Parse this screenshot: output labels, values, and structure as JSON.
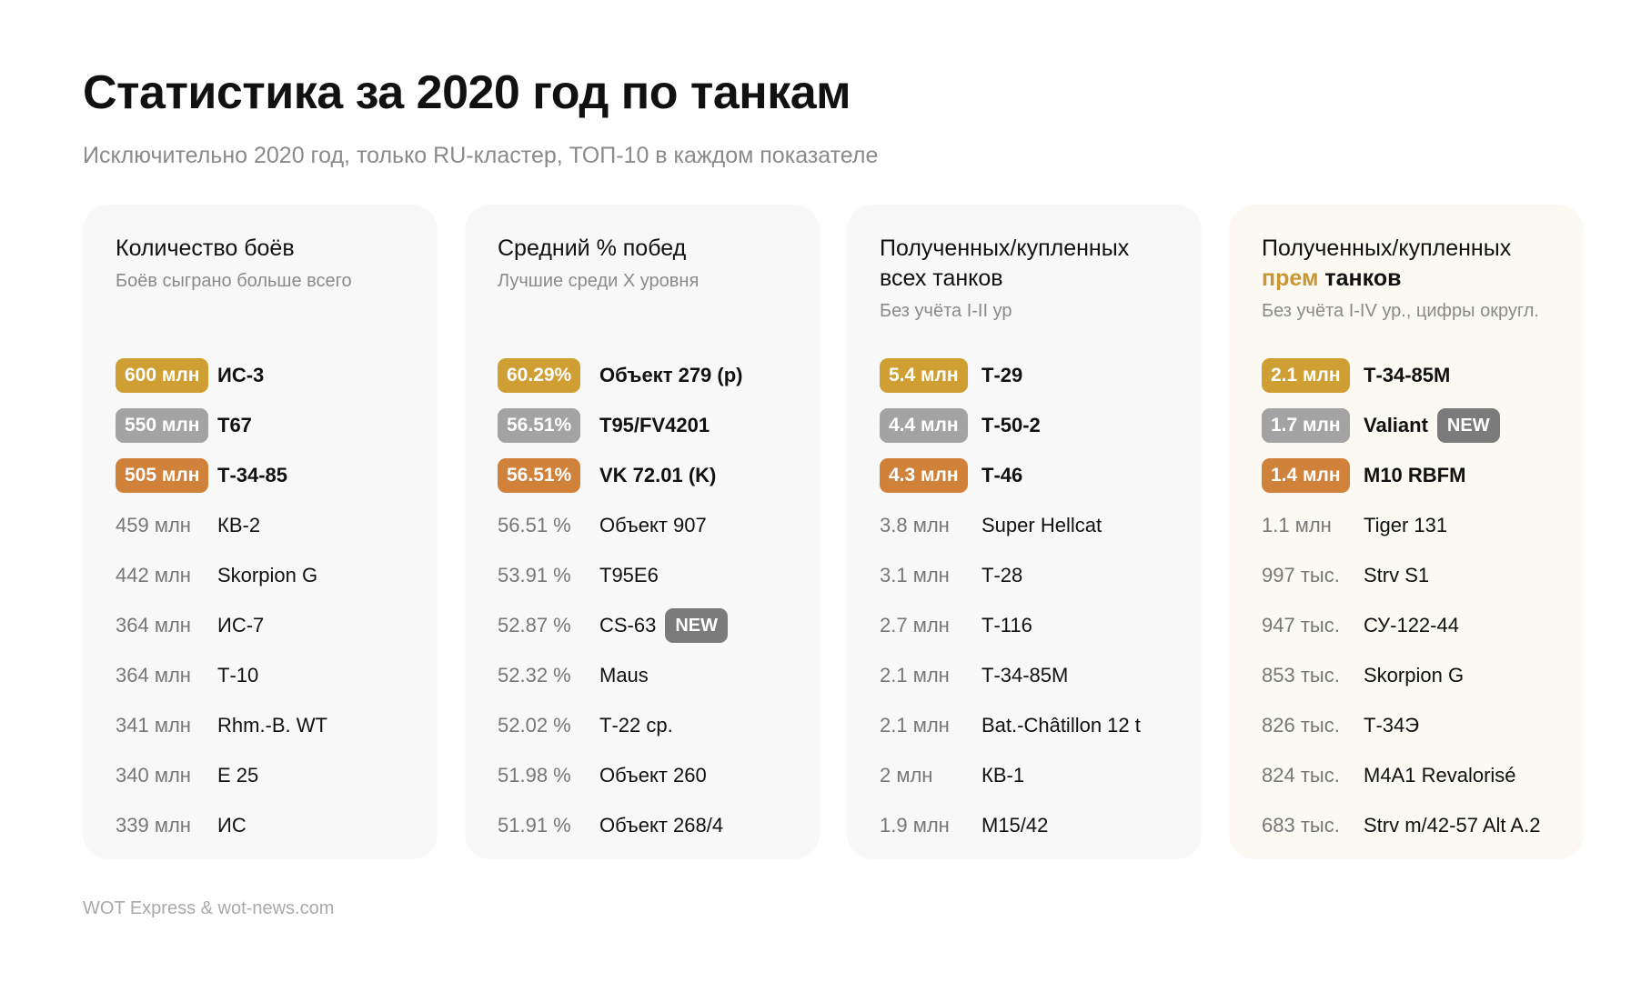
{
  "title": "Статистика за 2020 год по танкам",
  "subtitle": "Исключительно 2020 год, только RU-кластер, ТОП-10 в каждом показателе",
  "footer": "WOT Express & wot-news.com",
  "colors": {
    "gold": "#d09f34",
    "silver": "#a3a3a3",
    "bronze": "#d1823a",
    "highlight": "#c9962f",
    "new_badge": "#7b7b7b"
  },
  "cards": [
    {
      "title": "Количество боёв",
      "note": "Боёв сыграно больше всего",
      "rows": [
        {
          "value": "600 млн",
          "name": "ИС-3"
        },
        {
          "value": "550 млн",
          "name": "T67"
        },
        {
          "value": "505 млн",
          "name": "Т-34-85"
        },
        {
          "value": "459 млн",
          "name": "КВ-2"
        },
        {
          "value": "442 млн",
          "name": "Skorpion G"
        },
        {
          "value": "364 млн",
          "name": "ИС-7"
        },
        {
          "value": "364 млн",
          "name": "Т-10"
        },
        {
          "value": "341 млн",
          "name": "Rhm.-B. WT"
        },
        {
          "value": "340 млн",
          "name": "E 25"
        },
        {
          "value": "339 млн",
          "name": "ИС"
        }
      ]
    },
    {
      "title": "Средний % побед",
      "note": "Лучшие среди X уровня",
      "rows": [
        {
          "value": "60.29%",
          "name": "Объект 279 (р)"
        },
        {
          "value": "56.51%",
          "name": "T95/FV4201"
        },
        {
          "value": "56.51%",
          "name": "VK 72.01 (K)"
        },
        {
          "value": "56.51 %",
          "name": "Объект 907"
        },
        {
          "value": "53.91 %",
          "name": "T95E6"
        },
        {
          "value": "52.87 %",
          "name": "CS-63",
          "badge": "NEW"
        },
        {
          "value": "52.32 %",
          "name": "Maus"
        },
        {
          "value": "52.02 %",
          "name": "Т-22 ср."
        },
        {
          "value": "51.98 %",
          "name": "Объект 260"
        },
        {
          "value": "51.91 %",
          "name": "Объект 268/4"
        }
      ]
    },
    {
      "title": "Полученных/купленных",
      "title_line2": "всех танков",
      "note": "Без учёта I-II ур",
      "rows": [
        {
          "value": "5.4 млн",
          "name": "Т-29"
        },
        {
          "value": "4.4 млн",
          "name": "Т-50-2"
        },
        {
          "value": "4.3 млн",
          "name": "Т-46"
        },
        {
          "value": "3.8 млн",
          "name": "Super Hellcat"
        },
        {
          "value": "3.1 млн",
          "name": "Т-28"
        },
        {
          "value": "2.7 млн",
          "name": "Т-116"
        },
        {
          "value": "2.1 млн",
          "name": "Т-34-85М"
        },
        {
          "value": "2.1 млн",
          "name": "Bat.-Châtillon 12 t"
        },
        {
          "value": "2 млн",
          "name": "КВ-1"
        },
        {
          "value": "1.9 млн",
          "name": "M15/42"
        }
      ]
    },
    {
      "title": "Полученных/купленных",
      "title_hl": "прем",
      "title_rest": "танков",
      "note": "Без учёта I-IV ур., цифры округл.",
      "rows": [
        {
          "value": "2.1 млн",
          "name": "Т-34-85М"
        },
        {
          "value": "1.7 млн",
          "name": "Valiant",
          "badge": "NEW"
        },
        {
          "value": "1.4 млн",
          "name": "M10 RBFM"
        },
        {
          "value": "1.1 млн",
          "name": "Tiger 131"
        },
        {
          "value": "997 тыс.",
          "name": "Strv S1"
        },
        {
          "value": "947 тыс.",
          "name": "СУ-122-44"
        },
        {
          "value": "853 тыс.",
          "name": "Skorpion G"
        },
        {
          "value": "826 тыс.",
          "name": "Т-34Э"
        },
        {
          "value": "824 тыс.",
          "name": "M4A1 Revalorisé"
        },
        {
          "value": "683 тыс.",
          "name": "Strv m/42-57 Alt A.2"
        }
      ]
    }
  ]
}
